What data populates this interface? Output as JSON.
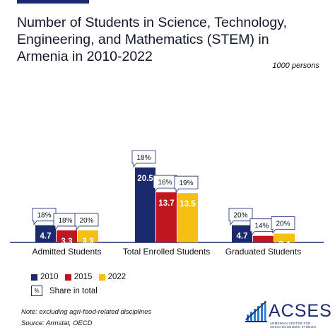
{
  "title": "Number of Students in Science, Technology, Engineering, and Mathematics (STEM) in Armenia in 2010-2022",
  "unit": "1000 persons",
  "legend": {
    "series": [
      {
        "name": "2010",
        "color": "#1a2a6c"
      },
      {
        "name": "2015",
        "color": "#c0161f"
      },
      {
        "name": "2022",
        "color": "#f6c012"
      }
    ],
    "share_box": "%",
    "share_label": "Share in total"
  },
  "note": "Note: excluding agri-food-related disciplines",
  "source": "Source: Armstat, OECD",
  "logo": {
    "name": "ACSES",
    "subtitle_line1": "ARMENIAN CENTER FOR",
    "subtitle_line2": "SOCIO-ECONOMIC STUDIES"
  },
  "chart_data": {
    "type": "bar",
    "categories": [
      "Admitted Students",
      "Total Enrolled Students",
      "Graduated Students"
    ],
    "series": [
      {
        "name": "2010",
        "values": [
          4.7,
          20.5,
          4.7
        ],
        "shares": [
          "18%",
          "18%",
          "20%"
        ]
      },
      {
        "name": "2015",
        "values": [
          3.3,
          13.7,
          1.8
        ],
        "shares": [
          "18%",
          "16%",
          "14%"
        ]
      },
      {
        "name": "2022",
        "values": [
          3.3,
          13.5,
          2.4
        ],
        "shares": [
          "20%",
          "19%",
          "20%"
        ]
      }
    ],
    "ylim": [
      0,
      20.5
    ],
    "grid": false,
    "legend_position": "bottom-left"
  }
}
